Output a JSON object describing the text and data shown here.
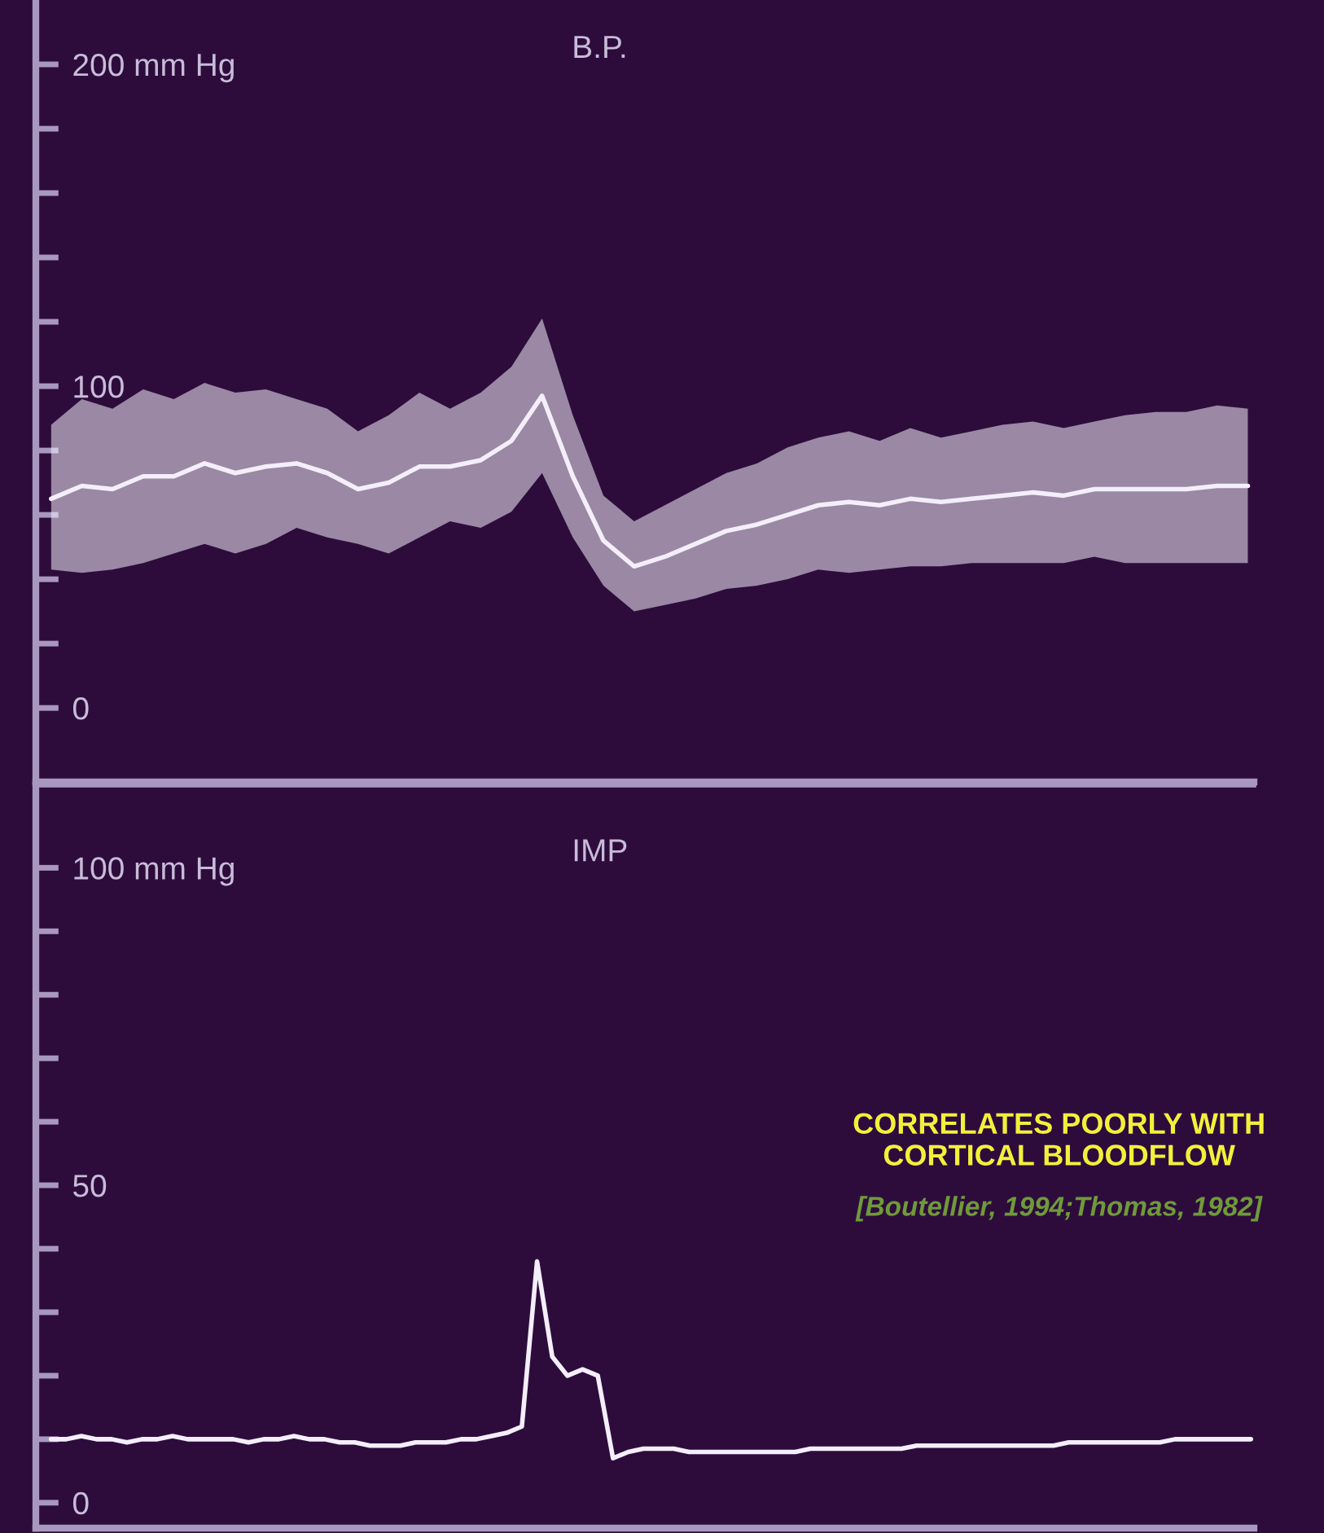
{
  "chart_data": [
    {
      "type": "line",
      "title": "B.P.",
      "categories": [
        null,
        null,
        null,
        null,
        null,
        null,
        null,
        null,
        null,
        null,
        null,
        null,
        null,
        null,
        null,
        null,
        null,
        null,
        null,
        null,
        null,
        null,
        null,
        null,
        null,
        null,
        null,
        null,
        null,
        null,
        null,
        null,
        null,
        null,
        null,
        null,
        null,
        null,
        null,
        null
      ],
      "series": [
        {
          "color": "#f4eefa",
          "values": [
            65,
            69,
            68,
            72,
            72,
            76,
            73,
            75,
            76,
            73,
            68,
            70,
            75,
            75,
            77,
            83,
            97,
            72,
            52,
            44,
            47,
            51,
            55,
            57,
            60,
            63,
            64,
            63,
            65,
            64,
            65,
            66,
            67,
            66,
            68,
            68,
            68,
            68,
            69,
            69
          ],
          "lower": [
            43,
            42,
            43,
            45,
            48,
            51,
            48,
            51,
            56,
            53,
            51,
            48,
            53,
            58,
            56,
            61,
            73,
            53,
            38,
            30,
            32,
            34,
            37,
            38,
            40,
            43,
            42,
            43,
            44,
            44,
            45,
            45,
            45,
            45,
            47,
            45,
            45,
            45,
            45,
            45
          ],
          "upper": [
            88,
            96,
            93,
            99,
            96,
            101,
            98,
            99,
            96,
            93,
            86,
            91,
            98,
            93,
            98,
            106,
            121,
            91,
            66,
            58,
            63,
            68,
            73,
            76,
            81,
            84,
            86,
            83,
            87,
            84,
            86,
            88,
            89,
            87,
            89,
            91,
            92,
            92,
            94,
            93
          ]
        }
      ],
      "ylim": [
        -23,
        220
      ],
      "yticks": [
        0,
        {
          "value": 20,
          "label": null
        },
        {
          "value": 40,
          "label": null
        },
        {
          "value": 60,
          "label": null
        },
        {
          "value": 80,
          "label": null
        },
        100,
        {
          "value": 120,
          "label": null
        },
        {
          "value": 140,
          "label": null
        },
        {
          "value": 160,
          "label": null
        },
        {
          "value": 180,
          "label": null
        },
        {
          "value": 200,
          "label": "200 mm Hg"
        }
      ],
      "grid": false,
      "legend": false
    },
    {
      "type": "line",
      "title": "IMP",
      "categories": [
        null,
        null,
        null,
        null,
        null,
        null,
        null,
        null,
        null,
        null,
        null,
        null,
        null,
        null,
        null,
        null,
        null,
        null,
        null,
        null,
        null,
        null,
        null,
        null,
        null,
        null,
        null,
        null,
        null,
        null,
        null,
        null,
        null,
        null,
        null,
        null,
        null,
        null,
        null,
        null,
        null,
        null,
        null,
        null,
        null,
        null,
        null,
        null,
        null,
        null,
        null,
        null,
        null,
        null,
        null,
        null,
        null,
        null,
        null,
        null,
        null,
        null,
        null,
        null,
        null,
        null,
        null,
        null,
        null,
        null,
        null,
        null,
        null,
        null,
        null,
        null,
        null,
        null,
        null,
        null
      ],
      "series": [
        {
          "color": "#f4eefa",
          "values": [
            10,
            10,
            10.5,
            10,
            10,
            9.5,
            10,
            10,
            10.5,
            10,
            10,
            10,
            10,
            9.5,
            10,
            10,
            10.5,
            10,
            10,
            9.5,
            9.5,
            9,
            9,
            9,
            9.5,
            9.5,
            9.5,
            10,
            10,
            10.5,
            11,
            12,
            38,
            23,
            20,
            21,
            20,
            7,
            8,
            8.5,
            8.5,
            8.5,
            8,
            8,
            8,
            8,
            8,
            8,
            8,
            8,
            8.5,
            8.5,
            8.5,
            8.5,
            8.5,
            8.5,
            8.5,
            9,
            9,
            9,
            9,
            9,
            9,
            9,
            9,
            9,
            9,
            9.5,
            9.5,
            9.5,
            9.5,
            9.5,
            9.5,
            9.5,
            10,
            10,
            10,
            10,
            10,
            10
          ]
        }
      ],
      "ylim": [
        -4,
        113
      ],
      "yticks": [
        {
          "value": 0,
          "label": "0"
        },
        {
          "value": 10,
          "label": null
        },
        {
          "value": 20,
          "label": null
        },
        {
          "value": 30,
          "label": null
        },
        {
          "value": 40,
          "label": null
        },
        50,
        {
          "value": 60,
          "label": null
        },
        {
          "value": 70,
          "label": null
        },
        {
          "value": 80,
          "label": null
        },
        {
          "value": 90,
          "label": null
        },
        {
          "value": 100,
          "label": "100 mm Hg"
        }
      ],
      "annotations": [
        "CORRELATES POORLY WITH\nCORTICAL BLOODFLOW",
        "[Boutellier, 1994;Thomas, 1982]"
      ],
      "grid": false,
      "legend": false
    }
  ]
}
